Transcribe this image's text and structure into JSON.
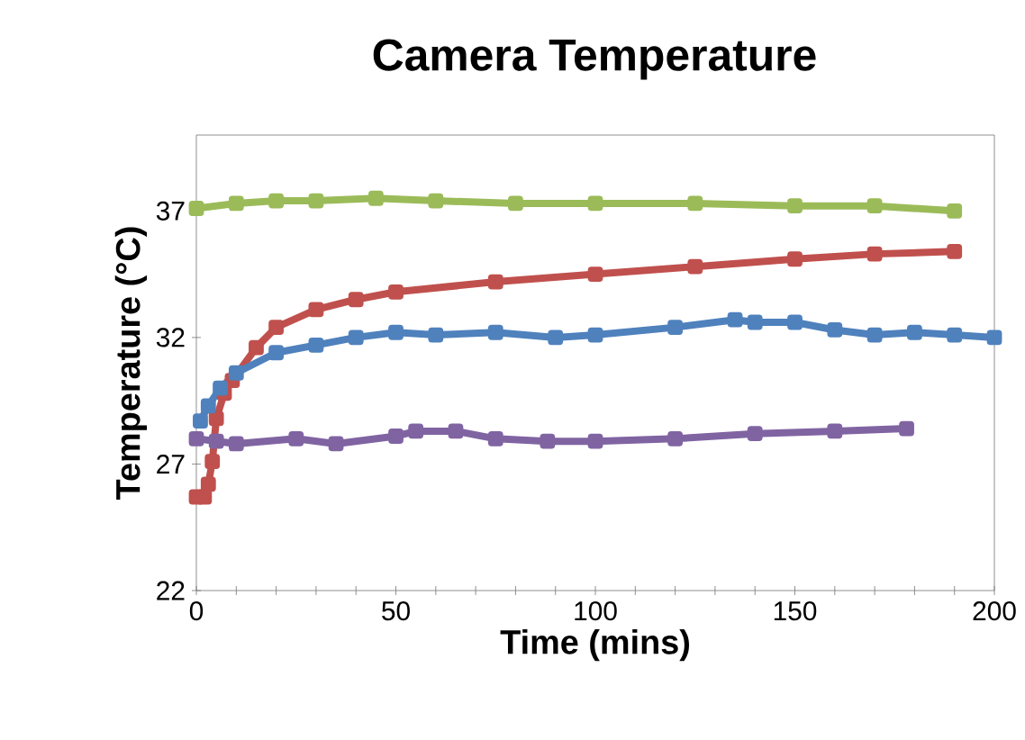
{
  "chart_data": {
    "type": "line",
    "title": "Camera Temperature",
    "xlabel": "Time (mins)",
    "ylabel": "Temperature (°C)",
    "xlim": [
      0,
      200
    ],
    "ylim": [
      22,
      40
    ],
    "marker": "square",
    "xticks": [
      0,
      {
        "value": 10,
        "label": null
      },
      {
        "value": 20,
        "label": null
      },
      {
        "value": 30,
        "label": null
      },
      {
        "value": 40,
        "label": null
      },
      50,
      {
        "value": 60,
        "label": null
      },
      {
        "value": 70,
        "label": null
      },
      {
        "value": 80,
        "label": null
      },
      {
        "value": 90,
        "label": null
      },
      100,
      {
        "value": 110,
        "label": null
      },
      {
        "value": 120,
        "label": null
      },
      {
        "value": 130,
        "label": null
      },
      {
        "value": 140,
        "label": null
      },
      150,
      {
        "value": 160,
        "label": null
      },
      {
        "value": 170,
        "label": null
      },
      {
        "value": 180,
        "label": null
      },
      {
        "value": 190,
        "label": null
      },
      200
    ],
    "yticks": [
      22,
      27,
      32,
      37
    ],
    "series": [
      {
        "color": "#9bbb59",
        "x": [
          0,
          10,
          20,
          30,
          45,
          60,
          80,
          100,
          125,
          150,
          170,
          190
        ],
        "values": [
          37.1,
          37.3,
          37.4,
          37.4,
          37.5,
          37.4,
          37.3,
          37.3,
          37.3,
          37.2,
          37.2,
          37.0
        ]
      },
      {
        "color": "#c0504d",
        "x": [
          0,
          2,
          3,
          4,
          5,
          7,
          9,
          15,
          20,
          30,
          40,
          50,
          75,
          100,
          125,
          150,
          170,
          190
        ],
        "values": [
          25.7,
          25.7,
          26.2,
          27.1,
          28.8,
          29.8,
          30.3,
          31.6,
          32.4,
          33.1,
          33.5,
          33.8,
          34.2,
          34.5,
          34.8,
          35.1,
          35.3,
          35.4
        ]
      },
      {
        "color": "#4f81bd",
        "x": [
          1,
          3,
          6,
          10,
          20,
          30,
          40,
          50,
          60,
          75,
          90,
          100,
          120,
          135,
          140,
          150,
          160,
          170,
          180,
          190,
          200
        ],
        "values": [
          28.7,
          29.3,
          30.0,
          30.6,
          31.4,
          31.7,
          32.0,
          32.2,
          32.1,
          32.2,
          32.0,
          32.1,
          32.4,
          32.7,
          32.6,
          32.6,
          32.3,
          32.1,
          32.2,
          32.1,
          32.0
        ]
      },
      {
        "color": "#8064a2",
        "x": [
          0,
          5,
          10,
          25,
          35,
          50,
          55,
          65,
          75,
          88,
          100,
          120,
          140,
          160,
          178
        ],
        "values": [
          28.0,
          27.9,
          27.8,
          28.0,
          27.8,
          28.1,
          28.3,
          28.3,
          28.0,
          27.9,
          27.9,
          28.0,
          28.2,
          28.3,
          28.4
        ]
      }
    ]
  }
}
